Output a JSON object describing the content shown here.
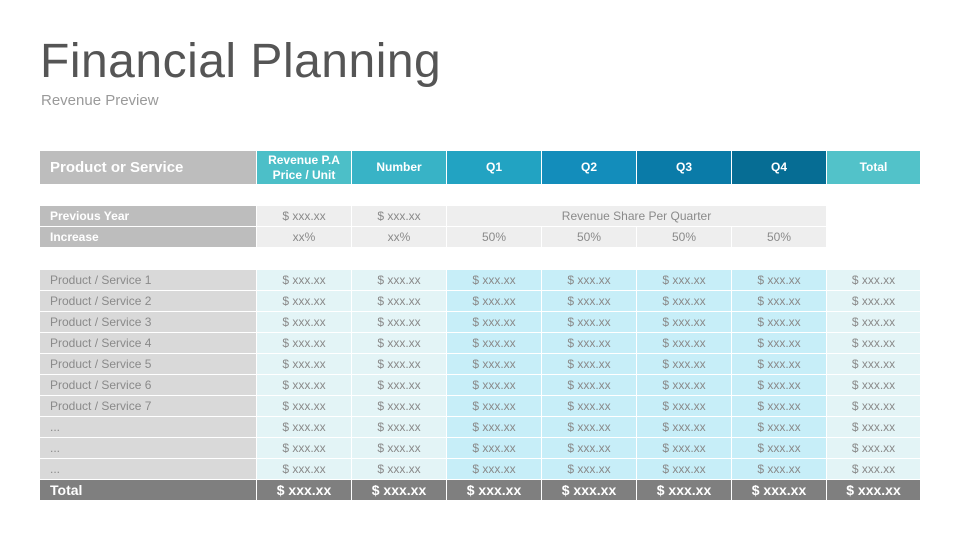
{
  "slide": {
    "title": "Financial Planning",
    "subtitle": "Revenue Preview"
  },
  "header": {
    "product": "Product or Service",
    "price_line1": "Revenue P.A",
    "price_line2": "Price / Unit",
    "number": "Number",
    "q1": "Q1",
    "q2": "Q2",
    "q3": "Q3",
    "q4": "Q4",
    "total": "Total"
  },
  "previous_year": {
    "label": "Previous Year",
    "price": "$ xxx.xx",
    "number": "$ xxx.xx",
    "share_label": "Revenue Share Per Quarter"
  },
  "increase": {
    "label": "Increase",
    "price": "xx%",
    "number": "xx%",
    "q1": "50%",
    "q2": "50%",
    "q3": "50%",
    "q4": "50%"
  },
  "rows": [
    {
      "label": "Product / Service 1",
      "cells": [
        "$ xxx.xx",
        "$ xxx.xx",
        "$ xxx.xx",
        "$ xxx.xx",
        "$ xxx.xx",
        "$ xxx.xx",
        "$ xxx.xx"
      ]
    },
    {
      "label": "Product / Service 2",
      "cells": [
        "$ xxx.xx",
        "$ xxx.xx",
        "$ xxx.xx",
        "$ xxx.xx",
        "$ xxx.xx",
        "$ xxx.xx",
        "$ xxx.xx"
      ]
    },
    {
      "label": "Product / Service 3",
      "cells": [
        "$ xxx.xx",
        "$ xxx.xx",
        "$ xxx.xx",
        "$ xxx.xx",
        "$ xxx.xx",
        "$ xxx.xx",
        "$ xxx.xx"
      ]
    },
    {
      "label": "Product / Service 4",
      "cells": [
        "$ xxx.xx",
        "$ xxx.xx",
        "$ xxx.xx",
        "$ xxx.xx",
        "$ xxx.xx",
        "$ xxx.xx",
        "$ xxx.xx"
      ]
    },
    {
      "label": "Product / Service 5",
      "cells": [
        "$ xxx.xx",
        "$ xxx.xx",
        "$ xxx.xx",
        "$ xxx.xx",
        "$ xxx.xx",
        "$ xxx.xx",
        "$ xxx.xx"
      ]
    },
    {
      "label": "Product / Service 6",
      "cells": [
        "$ xxx.xx",
        "$ xxx.xx",
        "$ xxx.xx",
        "$ xxx.xx",
        "$ xxx.xx",
        "$ xxx.xx",
        "$ xxx.xx"
      ]
    },
    {
      "label": "Product / Service 7",
      "cells": [
        "$ xxx.xx",
        "$ xxx.xx",
        "$ xxx.xx",
        "$ xxx.xx",
        "$ xxx.xx",
        "$ xxx.xx",
        "$ xxx.xx"
      ]
    },
    {
      "label": "...",
      "cells": [
        "$ xxx.xx",
        "$ xxx.xx",
        "$ xxx.xx",
        "$ xxx.xx",
        "$ xxx.xx",
        "$ xxx.xx",
        "$ xxx.xx"
      ]
    },
    {
      "label": "...",
      "cells": [
        "$ xxx.xx",
        "$ xxx.xx",
        "$ xxx.xx",
        "$ xxx.xx",
        "$ xxx.xx",
        "$ xxx.xx",
        "$ xxx.xx"
      ]
    },
    {
      "label": "...",
      "cells": [
        "$ xxx.xx",
        "$ xxx.xx",
        "$ xxx.xx",
        "$ xxx.xx",
        "$ xxx.xx",
        "$ xxx.xx",
        "$ xxx.xx"
      ]
    }
  ],
  "total": {
    "label": "Total",
    "cells": [
      "$ xxx.xx",
      "$ xxx.xx",
      "$ xxx.xx",
      "$ xxx.xx",
      "$ xxx.xx",
      "$ xxx.xx",
      "$ xxx.xx"
    ]
  }
}
